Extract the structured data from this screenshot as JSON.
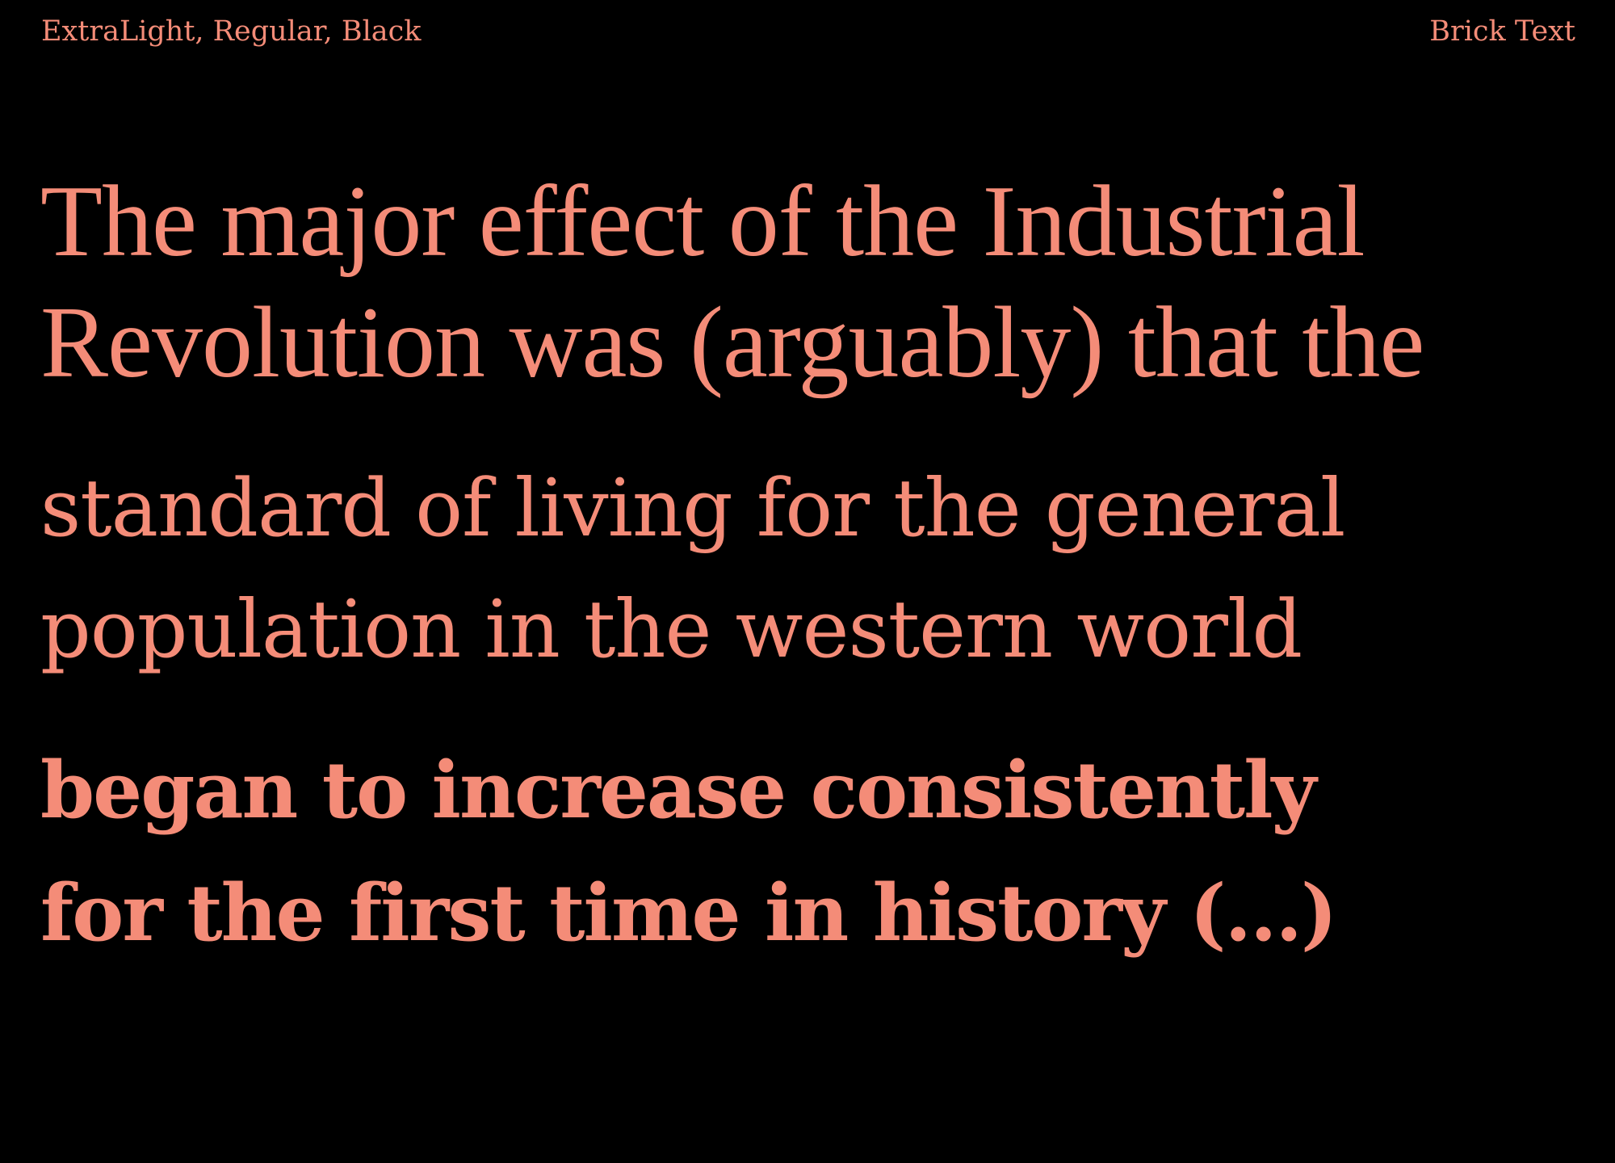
{
  "colors": {
    "background": "#000000",
    "text": "#F48C78"
  },
  "header": {
    "weights_label": "ExtraLight, Regular, Black",
    "font_name": "Brick Text"
  },
  "specimen": {
    "extralight_lines": [
      "The major effect of the Industrial",
      "Revolution was (arguably) that the"
    ],
    "regular_lines": [
      "standard of living for the general",
      "population in the western world"
    ],
    "black_lines": [
      "began to increase consistently",
      "for the first time in history (...)"
    ]
  }
}
